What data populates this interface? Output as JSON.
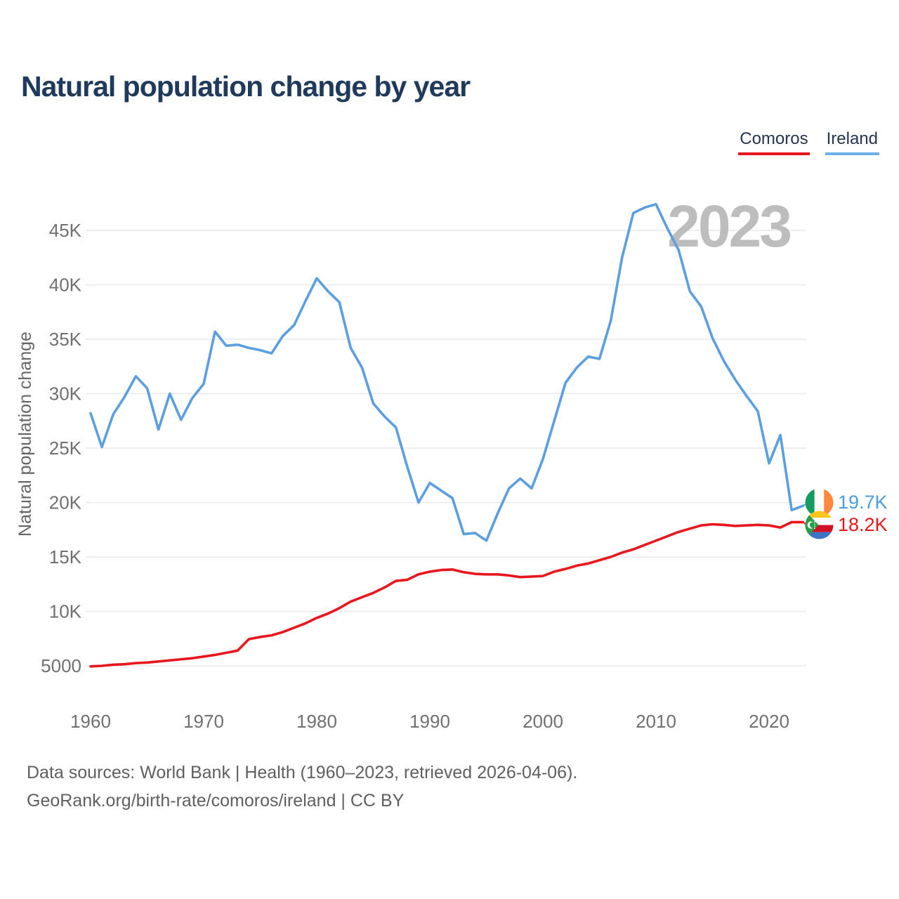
{
  "title": "Natural population change by year",
  "watermark_year": "2023",
  "legend": {
    "items": [
      {
        "label": "Comoros",
        "color": "#e8161d"
      },
      {
        "label": "Ireland",
        "color": "#6fb0ea"
      }
    ]
  },
  "end_labels": {
    "ireland": {
      "series": "Ireland",
      "value": "19.7K",
      "color": "#4d9ce0"
    },
    "comoros": {
      "series": "Comoros",
      "value": "18.2K",
      "color": "#e8161d"
    }
  },
  "footer": {
    "line1": "Data sources: World Bank | Health (1960–2023, retrieved 2026-04-06).",
    "line2": "GeoRank.org/birth-rate/comoros/ireland | CC BY"
  },
  "chart_data": {
    "type": "line",
    "title": "Natural population change by year",
    "xlabel": "",
    "ylabel": "Natural population change",
    "grid": true,
    "legend_position": "top-right",
    "ylim": [
      3000,
      48500
    ],
    "xlim": [
      1960,
      2023
    ],
    "xticks": [
      1960,
      1970,
      1980,
      1990,
      2000,
      2010,
      2020
    ],
    "ytick_values": [
      5000,
      10000,
      15000,
      20000,
      25000,
      30000,
      35000,
      40000,
      45000
    ],
    "ytick_labels": [
      "5000",
      "10K",
      "15K",
      "20K",
      "25K",
      "30K",
      "35K",
      "40K",
      "45K"
    ],
    "x": [
      1960,
      1961,
      1962,
      1963,
      1964,
      1965,
      1966,
      1967,
      1968,
      1969,
      1970,
      1971,
      1972,
      1973,
      1974,
      1975,
      1976,
      1977,
      1978,
      1979,
      1980,
      1981,
      1982,
      1983,
      1984,
      1985,
      1986,
      1987,
      1988,
      1989,
      1990,
      1991,
      1992,
      1993,
      1994,
      1995,
      1996,
      1997,
      1998,
      1999,
      2000,
      2001,
      2002,
      2003,
      2004,
      2005,
      2006,
      2007,
      2008,
      2009,
      2010,
      2011,
      2012,
      2013,
      2014,
      2015,
      2016,
      2017,
      2018,
      2019,
      2020,
      2021,
      2022,
      2023
    ],
    "series": [
      {
        "name": "Comoros",
        "color": "#e8161d",
        "values": [
          4950,
          5000,
          5100,
          5150,
          5250,
          5300,
          5400,
          5500,
          5600,
          5700,
          5850,
          6000,
          6200,
          6400,
          7450,
          7650,
          7800,
          8100,
          8500,
          8900,
          9400,
          9800,
          10300,
          10900,
          11300,
          11700,
          12200,
          12800,
          12900,
          13400,
          13650,
          13800,
          13850,
          13600,
          13450,
          13400,
          13400,
          13300,
          13150,
          13200,
          13250,
          13650,
          13900,
          14200,
          14400,
          14700,
          15000,
          15400,
          15700,
          16100,
          16500,
          16900,
          17300,
          17600,
          17900,
          18000,
          17950,
          17850,
          17900,
          17950,
          17900,
          17700,
          18200,
          18200
        ]
      },
      {
        "name": "Ireland",
        "color": "#5b9fe0",
        "values": [
          28200,
          25100,
          28100,
          29700,
          31600,
          30500,
          26700,
          30000,
          27600,
          29600,
          30900,
          35700,
          34400,
          34500,
          34200,
          34000,
          33700,
          35300,
          36300,
          38500,
          40600,
          39400,
          38400,
          34200,
          32400,
          29100,
          27900,
          26900,
          23300,
          20000,
          21800,
          21100,
          20400,
          17100,
          17200,
          16500,
          19000,
          21300,
          22200,
          21300,
          24000,
          27500,
          31000,
          32400,
          33400,
          33200,
          36700,
          42500,
          46600,
          47100,
          47400,
          45200,
          43200,
          39400,
          38000,
          35100,
          33000,
          31300,
          29800,
          28400,
          23600,
          26200,
          19300,
          19700
        ]
      }
    ]
  }
}
